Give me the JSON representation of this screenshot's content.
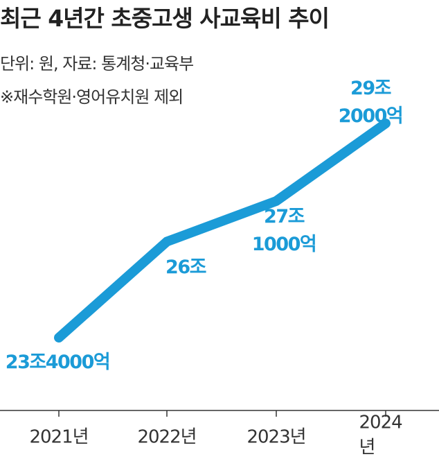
{
  "chart_data": {
    "type": "line",
    "title": "최근 4년간 초중고생 사교육비 추이",
    "subtitle": [
      "단위: 원, 자료: 통계청·교육부",
      "※재수학원·영어유치원 제외"
    ],
    "categories": [
      "2021년",
      "2022년",
      "2023년",
      "2024년"
    ],
    "values": [
      23.4,
      26,
      27.1,
      29.2
    ],
    "value_labels": [
      "23조4000억",
      "26조",
      "27조\n1000억",
      "29조2000억"
    ],
    "color": "#1b9bd7"
  }
}
